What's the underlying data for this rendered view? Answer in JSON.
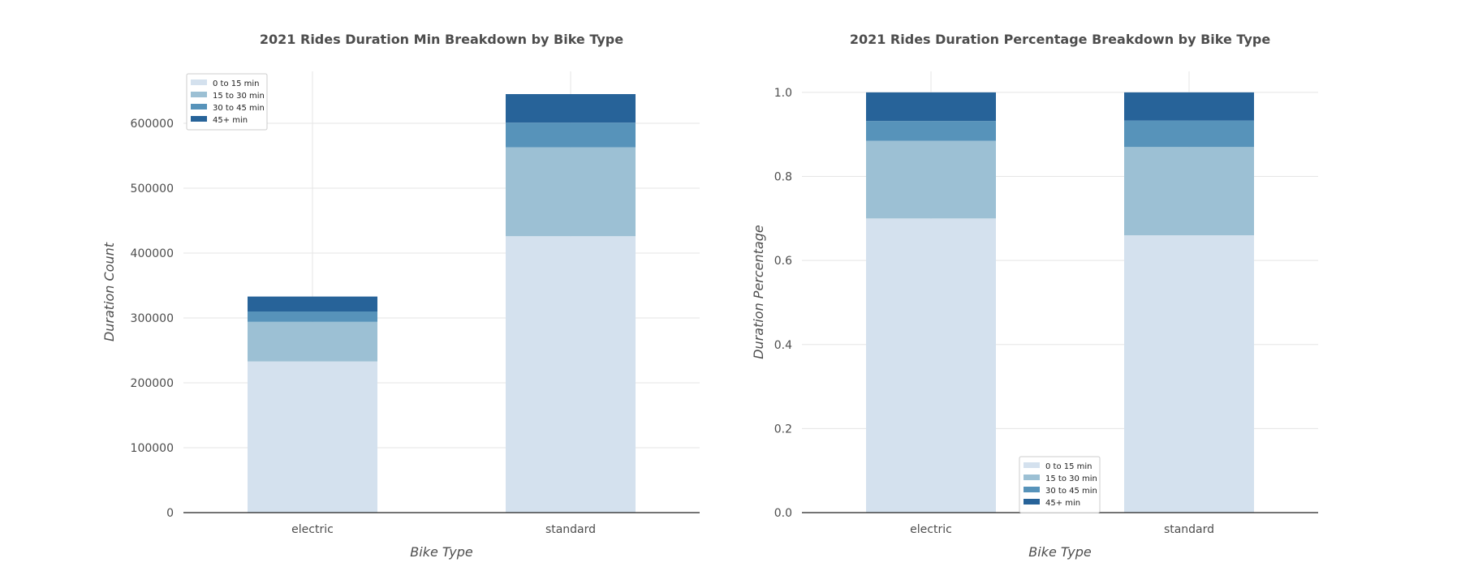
{
  "chart_data": [
    {
      "type": "bar",
      "stacked": true,
      "title": "2021 Rides Duration Min Breakdown by Bike Type",
      "xlabel": "Bike Type",
      "ylabel": "Duration Count",
      "categories": [
        "electric",
        "standard"
      ],
      "ylim": [
        0,
        680000
      ],
      "yticks": [
        0,
        100000,
        200000,
        300000,
        400000,
        500000,
        600000
      ],
      "grid": true,
      "legend_position": "top-left",
      "series": [
        {
          "name": "0 to 15 min",
          "color": "#d4e1ee",
          "values": [
            233000,
            426000
          ]
        },
        {
          "name": "15 to 30 min",
          "color": "#9cc0d4",
          "values": [
            61000,
            137000
          ]
        },
        {
          "name": "30 to 45 min",
          "color": "#5793ba",
          "values": [
            16000,
            38000
          ]
        },
        {
          "name": "45+ min",
          "color": "#276399",
          "values": [
            23000,
            44000
          ]
        }
      ]
    },
    {
      "type": "bar",
      "stacked": true,
      "title": "2021 Rides Duration Percentage Breakdown by Bike Type",
      "xlabel": "Bike Type",
      "ylabel": "Duration Percentage",
      "categories": [
        "electric",
        "standard"
      ],
      "ylim": [
        0,
        1.05
      ],
      "yticks": [
        0.0,
        0.2,
        0.4,
        0.6,
        0.8,
        1.0
      ],
      "ytick_labels": [
        "0.0",
        "0.2",
        "0.4",
        "0.6",
        "0.8",
        "1.0"
      ],
      "grid": true,
      "legend_position": "bottom-center",
      "series": [
        {
          "name": "0 to 15 min",
          "color": "#d4e1ee",
          "values": [
            0.7,
            0.66
          ]
        },
        {
          "name": "15 to 30 min",
          "color": "#9cc0d4",
          "values": [
            0.185,
            0.21
          ]
        },
        {
          "name": "30 to 45 min",
          "color": "#5793ba",
          "values": [
            0.047,
            0.063
          ]
        },
        {
          "name": "45+ min",
          "color": "#276399",
          "values": [
            0.068,
            0.067
          ]
        }
      ]
    }
  ]
}
